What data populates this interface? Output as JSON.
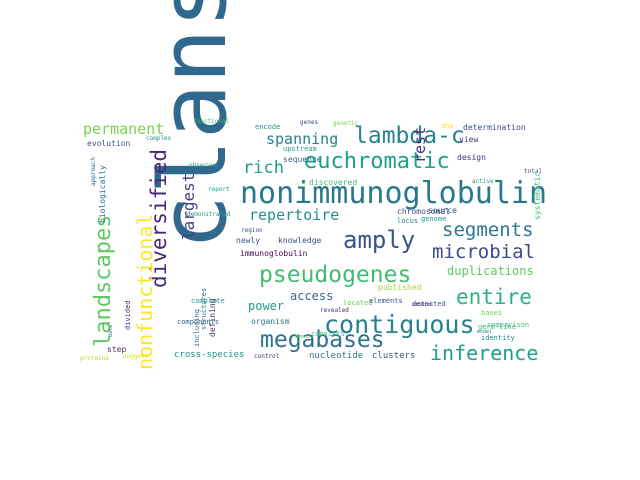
{
  "words": [
    {
      "text": "clans",
      "color": "#31688e"
    },
    {
      "text": "nonimmunoglobulin",
      "color": "#2a788e"
    },
    {
      "text": "contiguous",
      "color": "#26828e"
    },
    {
      "text": "pseudogenes",
      "color": "#3fbc73"
    },
    {
      "text": "euchromatic",
      "color": "#1fa187"
    },
    {
      "text": "megabases",
      "color": "#2c718e"
    },
    {
      "text": "amply",
      "color": "#3b528b"
    },
    {
      "text": "inference",
      "color": "#1f9e89"
    },
    {
      "text": "entire",
      "color": "#2db27d"
    },
    {
      "text": "lambda-c",
      "color": "#26828e"
    },
    {
      "text": "landscapes",
      "color": "#5ec962"
    },
    {
      "text": "segments",
      "color": "#2a788e"
    },
    {
      "text": "diversified",
      "color": "#482878"
    },
    {
      "text": "microbial",
      "color": "#3e4989"
    },
    {
      "text": "nonfunctional",
      "color": "#fde725"
    },
    {
      "text": "permanent",
      "color": "#7ad151"
    },
    {
      "text": "repertoire",
      "color": "#21918c"
    },
    {
      "text": "rich",
      "color": "#1f9e89"
    },
    {
      "text": "largest",
      "color": "#433e85"
    },
    {
      "text": "spanning",
      "color": "#26828e"
    },
    {
      "text": "rest",
      "color": "#482878"
    },
    {
      "text": "duplications",
      "color": "#5ec962"
    },
    {
      "text": "access",
      "color": "#31688e"
    },
    {
      "text": "power",
      "color": "#1f9e89"
    },
    {
      "text": "cross-species",
      "color": "#21918c"
    },
    {
      "text": "nucleotide",
      "color": "#2a788e"
    },
    {
      "text": "clusters",
      "color": "#3b528b"
    },
    {
      "text": "immunoglobulin",
      "color": "#440154"
    },
    {
      "text": "knowledge",
      "color": "#3e4989"
    },
    {
      "text": "newly",
      "color": "#3b528b"
    },
    {
      "text": "defining",
      "color": "#472d7b"
    },
    {
      "text": "organism",
      "color": "#2a788e"
    },
    {
      "text": "divided",
      "color": "#482878"
    },
    {
      "text": "evolution",
      "color": "#3b528b"
    },
    {
      "text": "biologically",
      "color": "#2c718e"
    },
    {
      "text": "step",
      "color": "#482878"
    },
    {
      "text": "discovered",
      "color": "#3fbc73"
    },
    {
      "text": "upstream",
      "color": "#1f9e89"
    },
    {
      "text": "sequence",
      "color": "#31688e"
    },
    {
      "text": "chromosomal",
      "color": "#3e4989"
    },
    {
      "text": "source",
      "color": "#3b528b"
    },
    {
      "text": "locus",
      "color": "#2a788e"
    },
    {
      "text": "genome",
      "color": "#1fa187"
    },
    {
      "text": "published",
      "color": "#a0da39"
    },
    {
      "text": "consists",
      "color": "#35b779"
    },
    {
      "text": "located",
      "color": "#6ece58"
    },
    {
      "text": "determination",
      "color": "#3e4989"
    },
    {
      "text": "view",
      "color": "#472d7b"
    },
    {
      "text": "design",
      "color": "#46327e"
    },
    {
      "text": "systematic",
      "color": "#3fbc73"
    },
    {
      "text": "bases",
      "color": "#6ece58"
    },
    {
      "text": "comparison",
      "color": "#3fbc73"
    },
    {
      "text": "germ-line",
      "color": "#35b779"
    },
    {
      "text": "identity",
      "color": "#23888e"
    },
    {
      "text": "elements",
      "color": "#3b528b"
    },
    {
      "text": "detected",
      "color": "#3b528b"
    },
    {
      "text": "structures",
      "color": "#2a788e"
    },
    {
      "text": "components",
      "color": "#31688e"
    },
    {
      "text": "complete",
      "color": "#21918c"
    },
    {
      "text": "including",
      "color": "#2c718e"
    },
    {
      "text": "control",
      "color": "#482878"
    },
    {
      "text": "human",
      "color": "#5ec962"
    },
    {
      "text": "studies",
      "color": "#482878"
    },
    {
      "text": "revealed",
      "color": "#46327e"
    },
    {
      "text": "region",
      "color": "#3b528b"
    },
    {
      "text": "demonstrated",
      "color": "#1f9e89"
    },
    {
      "text": "report",
      "color": "#1fa187"
    },
    {
      "text": "observed",
      "color": "#1f9e89"
    },
    {
      "text": "approach",
      "color": "#31688e"
    },
    {
      "text": "complex",
      "color": "#21918c"
    },
    {
      "text": "functional",
      "color": "#3fbc73"
    },
    {
      "text": "encode",
      "color": "#21918c"
    },
    {
      "text": "genes",
      "color": "#3e4989"
    },
    {
      "text": "genetic",
      "color": "#7ad151"
    },
    {
      "text": "dna",
      "color": "#fde725"
    },
    {
      "text": "active",
      "color": "#21918c"
    },
    {
      "text": "total",
      "color": "#3b528b"
    },
    {
      "text": "model",
      "color": "#2a788e"
    },
    {
      "text": "data",
      "color": "#31688e"
    },
    {
      "text": "proteins",
      "color": "#b5de2b"
    },
    {
      "text": "suggest",
      "color": "#d8e219"
    }
  ]
}
